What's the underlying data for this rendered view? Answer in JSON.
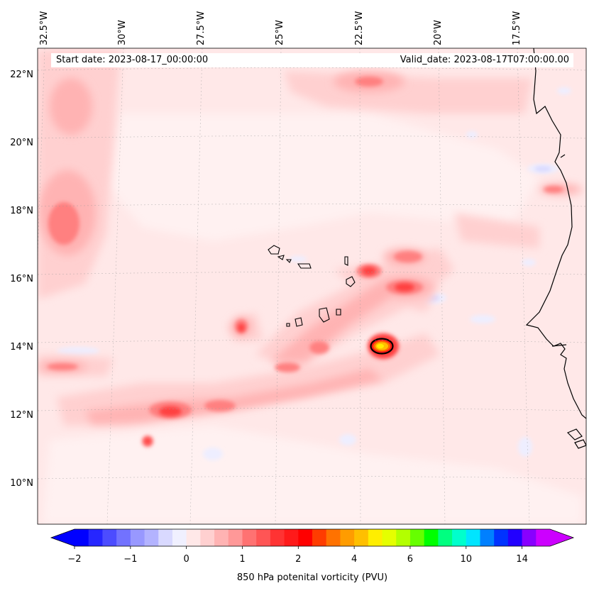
{
  "header": {
    "start_date": "Start date: 2023-08-17_00:00:00",
    "valid_date": "Valid_date: 2023-08-17T07:00:00.00"
  },
  "map": {
    "projection": "lambert-conformal",
    "lon_range": [
      -33.0,
      -15.5
    ],
    "lat_range": [
      9.0,
      22.8
    ],
    "gridlines": true,
    "lon_labels": [
      "32.5°W",
      "30°W",
      "27.5°W",
      "25°W",
      "22.5°W",
      "20°W",
      "17.5°W"
    ],
    "lon_values": [
      -32.5,
      -30,
      -27.5,
      -25,
      -22.5,
      -20,
      -17.5
    ],
    "lat_labels": [
      "22°N",
      "20°N",
      "18°N",
      "16°N",
      "14°N",
      "12°N",
      "10°N"
    ],
    "lat_values": [
      22,
      20,
      18,
      16,
      14,
      12,
      10
    ],
    "land_outline": "African coastline (Mauritania, Senegal, Gambia, Guinea-Bissau) and Cape Verde islands"
  },
  "colorbar": {
    "title": "850 hPa potenital vorticity (PVU)",
    "tick_labels": [
      "−2",
      "−1",
      "0",
      "1",
      "2",
      "4",
      "6",
      "10",
      "14"
    ],
    "tick_values": [
      -2,
      -1,
      0,
      1,
      2,
      4,
      6,
      10,
      14
    ],
    "colors": [
      "#0000ff",
      "#2626ff",
      "#4c4cff",
      "#7272ff",
      "#9898ff",
      "#b3b3ff",
      "#d9d9ff",
      "#f0f0ff",
      "#ffe8e8",
      "#ffd0d0",
      "#ffb3b3",
      "#ff9898",
      "#ff7272",
      "#ff5555",
      "#ff3333",
      "#ff1a1a",
      "#ff0000",
      "#ff3c00",
      "#ff7200",
      "#ff9c00",
      "#ffbf00",
      "#ffee00",
      "#e5ff00",
      "#b3ff00",
      "#66ff00",
      "#00ff00",
      "#00ff80",
      "#00ffcc",
      "#00e5ff",
      "#0080ff",
      "#0033ff",
      "#2200ff",
      "#8800ff",
      "#cc00ff"
    ],
    "extend_low": "#0000ff",
    "extend_high": "#cc00ff"
  }
}
